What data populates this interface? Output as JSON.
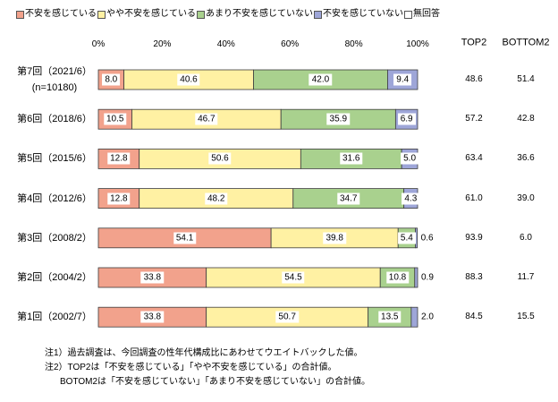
{
  "chart_data": {
    "type": "bar",
    "orientation": "horizontal",
    "stacked": true,
    "xlim": [
      0,
      100
    ],
    "grid": false,
    "legend_position": "top",
    "x_ticks": [
      {
        "value": 0,
        "label": "0%"
      },
      {
        "value": 20,
        "label": "20%"
      },
      {
        "value": 40,
        "label": "40%"
      },
      {
        "value": 60,
        "label": "60%"
      },
      {
        "value": 80,
        "label": "80%"
      },
      {
        "value": 100,
        "label": "100%"
      }
    ],
    "categories": [
      {
        "label": "第7回（2021/6）",
        "sub": "(n=10180)"
      },
      {
        "label": "第6回（2018/6）"
      },
      {
        "label": "第5回（2015/6）"
      },
      {
        "label": "第4回（2012/6）"
      },
      {
        "label": "第3回（2008/2）"
      },
      {
        "label": "第2回（2004/2）"
      },
      {
        "label": "第1回（2002/7）"
      }
    ],
    "series": [
      {
        "name": "不安を感じている",
        "color": "#f2a28c",
        "values": [
          8.0,
          10.5,
          12.8,
          12.8,
          54.1,
          33.8,
          33.8
        ]
      },
      {
        "name": "やや不安を感じている",
        "color": "#fff1a3",
        "values": [
          40.6,
          46.7,
          50.6,
          48.2,
          39.8,
          54.5,
          50.7
        ]
      },
      {
        "name": "あまり不安を感じていない",
        "color": "#a9d18e",
        "values": [
          42.0,
          35.9,
          31.6,
          34.7,
          5.4,
          10.8,
          13.5
        ]
      },
      {
        "name": "不安を感じていない",
        "color": "#9ea6d8",
        "values": [
          9.4,
          6.9,
          5.0,
          4.3,
          0.6,
          0.9,
          2.0
        ]
      },
      {
        "name": "無回答",
        "color": "#ffffff"
      }
    ],
    "summary_columns": [
      {
        "header": "TOP2",
        "values": [
          48.6,
          57.2,
          63.4,
          61.0,
          93.9,
          88.3,
          84.5
        ]
      },
      {
        "header": "BOTTOM2",
        "values": [
          51.4,
          42.8,
          36.6,
          39.0,
          6.0,
          11.7,
          15.5
        ]
      }
    ]
  },
  "notes": [
    "注1）過去調査は、今回調査の性年代構成比にあわせてウエイトバックした値。",
    "注2）TOP2は「不安を感じている」「やや不安を感じている」の合計値。",
    "BOTOM2は「不安を感じていない」「あまり不安を感じていない」の合計値。"
  ]
}
